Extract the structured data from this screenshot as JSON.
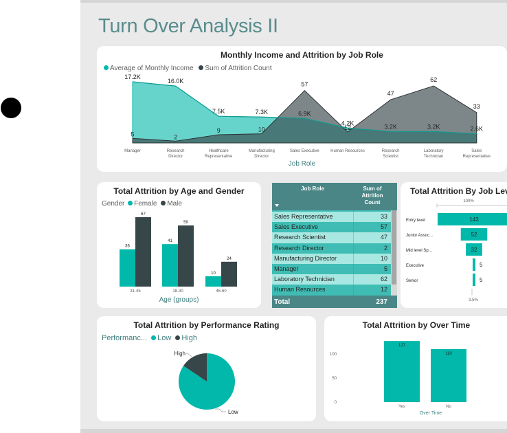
{
  "page_title": "Turn Over Analysis II",
  "colors": {
    "teal": "#01b8aa",
    "dark": "#374649",
    "gray": "#6d6d6d",
    "header": "#4a8686"
  },
  "chart_data": [
    {
      "type": "area",
      "title": "Monthly Income and Attrition by Job Role",
      "xlabel": "Job Role",
      "legend": [
        "Average of Monthly Income",
        "Sum of Attrition Count"
      ],
      "categories": [
        "Manager",
        "Research Director",
        "Healthcare Representative",
        "Manufacturing Director",
        "Sales Executive",
        "Human Resources",
        "Research Scientist",
        "Laboratory Technician",
        "Sales Representative"
      ],
      "series": [
        {
          "name": "Average of Monthly Income",
          "values": [
            17.2,
            16.0,
            7.5,
            7.3,
            6.9,
            4.2,
            3.2,
            3.2,
            2.6
          ],
          "labels": [
            "17.2K",
            "16.0K",
            "7.5K",
            "7.3K",
            "6.9K",
            "4.2K",
            "3.2K",
            "3.2K",
            "2.6K"
          ]
        },
        {
          "name": "Sum of Attrition Count",
          "values": [
            5,
            2,
            9,
            10,
            57,
            12,
            47,
            62,
            33
          ],
          "labels": [
            "5",
            "2",
            "9",
            "10",
            "57",
            "12",
            "47",
            "62",
            "33"
          ]
        }
      ]
    },
    {
      "type": "bar",
      "title": "Total Attrition by Age and Gender",
      "xlabel": "Age (groups)",
      "legend_title": "Gender",
      "categories": [
        "31-45",
        "18-30",
        "46-60"
      ],
      "series": [
        {
          "name": "Female",
          "values": [
            36,
            41,
            10
          ]
        },
        {
          "name": "Male",
          "values": [
            67,
            59,
            24
          ]
        }
      ]
    },
    {
      "type": "table",
      "columns": [
        "Job Role",
        "Sum of Attrition Count"
      ],
      "rows": [
        [
          "Sales Representative",
          "33"
        ],
        [
          "Sales Executive",
          "57"
        ],
        [
          "Research Scientist",
          "47"
        ],
        [
          "Research Director",
          "2"
        ],
        [
          "Manufacturing Director",
          "10"
        ],
        [
          "Manager",
          "5"
        ],
        [
          "Laboratory Technician",
          "62"
        ],
        [
          "Human Resources",
          "12"
        ]
      ],
      "total": [
        "Total",
        "237"
      ]
    },
    {
      "type": "bar",
      "subtype": "funnel",
      "title": "Total Attrition By Job Level",
      "top_label": "100%",
      "bottom_label": "3.5%",
      "categories": [
        "Entry level",
        "Junior Assoc...",
        "Mid level Sp...",
        "Executive",
        "Senior"
      ],
      "values": [
        143,
        52,
        32,
        5,
        5
      ]
    },
    {
      "type": "pie",
      "title": "Total Attrition by Performance Rating",
      "legend_title": "Performanc...",
      "categories": [
        "Low",
        "High"
      ],
      "values": [
        200,
        37
      ]
    },
    {
      "type": "bar",
      "title": "Total Attrition by Over Time",
      "xlabel": "Over Time",
      "categories": [
        "Yes",
        "No"
      ],
      "values": [
        127,
        110
      ],
      "yticks": [
        "0",
        "50",
        "100"
      ]
    }
  ]
}
